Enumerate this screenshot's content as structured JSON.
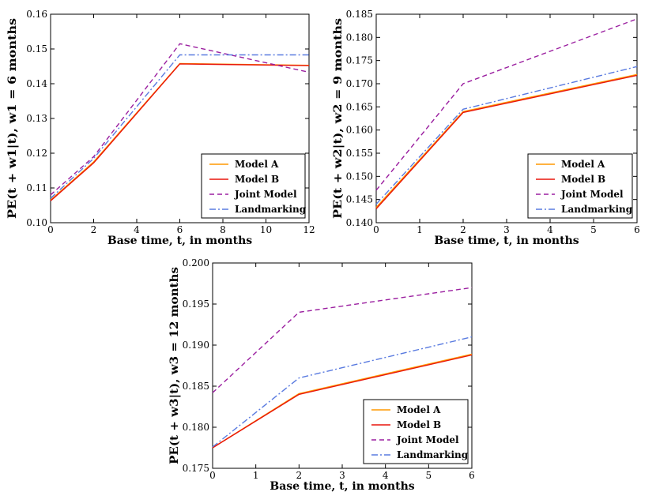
{
  "chart_data": [
    {
      "type": "line",
      "xlabel": "Base time, t, in months",
      "ylabel": "PE(t + w1|t), w1 = 6 months",
      "xlim": [
        0,
        12
      ],
      "ylim": [
        0.1,
        0.16
      ],
      "xticks": [
        0,
        2,
        4,
        6,
        8,
        10,
        12
      ],
      "xtick_labels": [
        "0",
        "2",
        "4",
        "6",
        "8",
        "10",
        "12"
      ],
      "yticks": [
        0.1,
        0.11,
        0.12,
        0.13,
        0.14,
        0.15,
        0.16
      ],
      "ytick_labels": [
        "0.10",
        "0.11",
        "0.12",
        "0.13",
        "0.14",
        "0.15",
        "0.16"
      ],
      "legend_position": "lower-right",
      "series": [
        {
          "name": "Model A",
          "x": [
            0,
            2,
            6,
            12
          ],
          "y": [
            0.1065,
            0.1175,
            0.1458,
            0.1453
          ]
        },
        {
          "name": "Model B",
          "x": [
            0,
            2,
            6,
            12
          ],
          "y": [
            0.1063,
            0.1172,
            0.1457,
            0.1452
          ]
        },
        {
          "name": "Joint Model",
          "x": [
            0,
            2,
            6,
            12
          ],
          "y": [
            0.108,
            0.119,
            0.1515,
            0.1433
          ]
        },
        {
          "name": "Landmarking",
          "x": [
            0,
            2,
            6,
            12
          ],
          "y": [
            0.107,
            0.1185,
            0.1483,
            0.1483
          ]
        }
      ]
    },
    {
      "type": "line",
      "xlabel": "Base time, t, in months",
      "ylabel": "PE(t + w2|t), w2 = 9 months",
      "xlim": [
        0,
        6
      ],
      "ylim": [
        0.14,
        0.185
      ],
      "xticks": [
        0,
        1,
        2,
        3,
        4,
        5,
        6
      ],
      "xtick_labels": [
        "0",
        "1",
        "2",
        "3",
        "4",
        "5",
        "6"
      ],
      "yticks": [
        0.14,
        0.145,
        0.15,
        0.155,
        0.16,
        0.165,
        0.17,
        0.175,
        0.18,
        0.185
      ],
      "ytick_labels": [
        "0.140",
        "0.145",
        "0.150",
        "0.155",
        "0.160",
        "0.165",
        "0.170",
        "0.175",
        "0.180",
        "0.185"
      ],
      "legend_position": "lower-right",
      "series": [
        {
          "name": "Model A",
          "x": [
            0,
            2,
            6
          ],
          "y": [
            0.1433,
            0.164,
            0.172
          ]
        },
        {
          "name": "Model B",
          "x": [
            0,
            2,
            6
          ],
          "y": [
            0.143,
            0.1638,
            0.1718
          ]
        },
        {
          "name": "Joint Model",
          "x": [
            0,
            2,
            6
          ],
          "y": [
            0.147,
            0.17,
            0.184
          ]
        },
        {
          "name": "Landmarking",
          "x": [
            0,
            2,
            6
          ],
          "y": [
            0.144,
            0.1645,
            0.1737
          ]
        }
      ]
    },
    {
      "type": "line",
      "xlabel": "Base time, t, in months",
      "ylabel": "PE(t + w3|t), w3 = 12 months",
      "xlim": [
        0,
        6
      ],
      "ylim": [
        0.175,
        0.2
      ],
      "xticks": [
        0,
        1,
        2,
        3,
        4,
        5,
        6
      ],
      "xtick_labels": [
        "0",
        "1",
        "2",
        "3",
        "4",
        "5",
        "6"
      ],
      "yticks": [
        0.175,
        0.18,
        0.185,
        0.19,
        0.195,
        0.2
      ],
      "ytick_labels": [
        "0.175",
        "0.180",
        "0.185",
        "0.190",
        "0.195",
        "0.200"
      ],
      "legend_position": "lower-right",
      "series": [
        {
          "name": "Model A",
          "x": [
            0,
            2,
            6
          ],
          "y": [
            0.1775,
            0.1841,
            0.1889
          ]
        },
        {
          "name": "Model B",
          "x": [
            0,
            2,
            6
          ],
          "y": [
            0.1775,
            0.184,
            0.1888
          ]
        },
        {
          "name": "Joint Model",
          "x": [
            0,
            2,
            6
          ],
          "y": [
            0.1842,
            0.194,
            0.197
          ]
        },
        {
          "name": "Landmarking",
          "x": [
            0,
            2,
            6
          ],
          "y": [
            0.1776,
            0.186,
            0.191
          ]
        }
      ]
    }
  ],
  "series_styles": [
    {
      "name": "Model A",
      "color": "#FF9900",
      "dash": "none"
    },
    {
      "name": "Model B",
      "color": "#E8150B",
      "dash": "none"
    },
    {
      "name": "Joint Model",
      "color": "#9B1FA0",
      "dash": "6,4"
    },
    {
      "name": "Landmarking",
      "color": "#5A7BE0",
      "dash": "8,3,2,3"
    }
  ]
}
